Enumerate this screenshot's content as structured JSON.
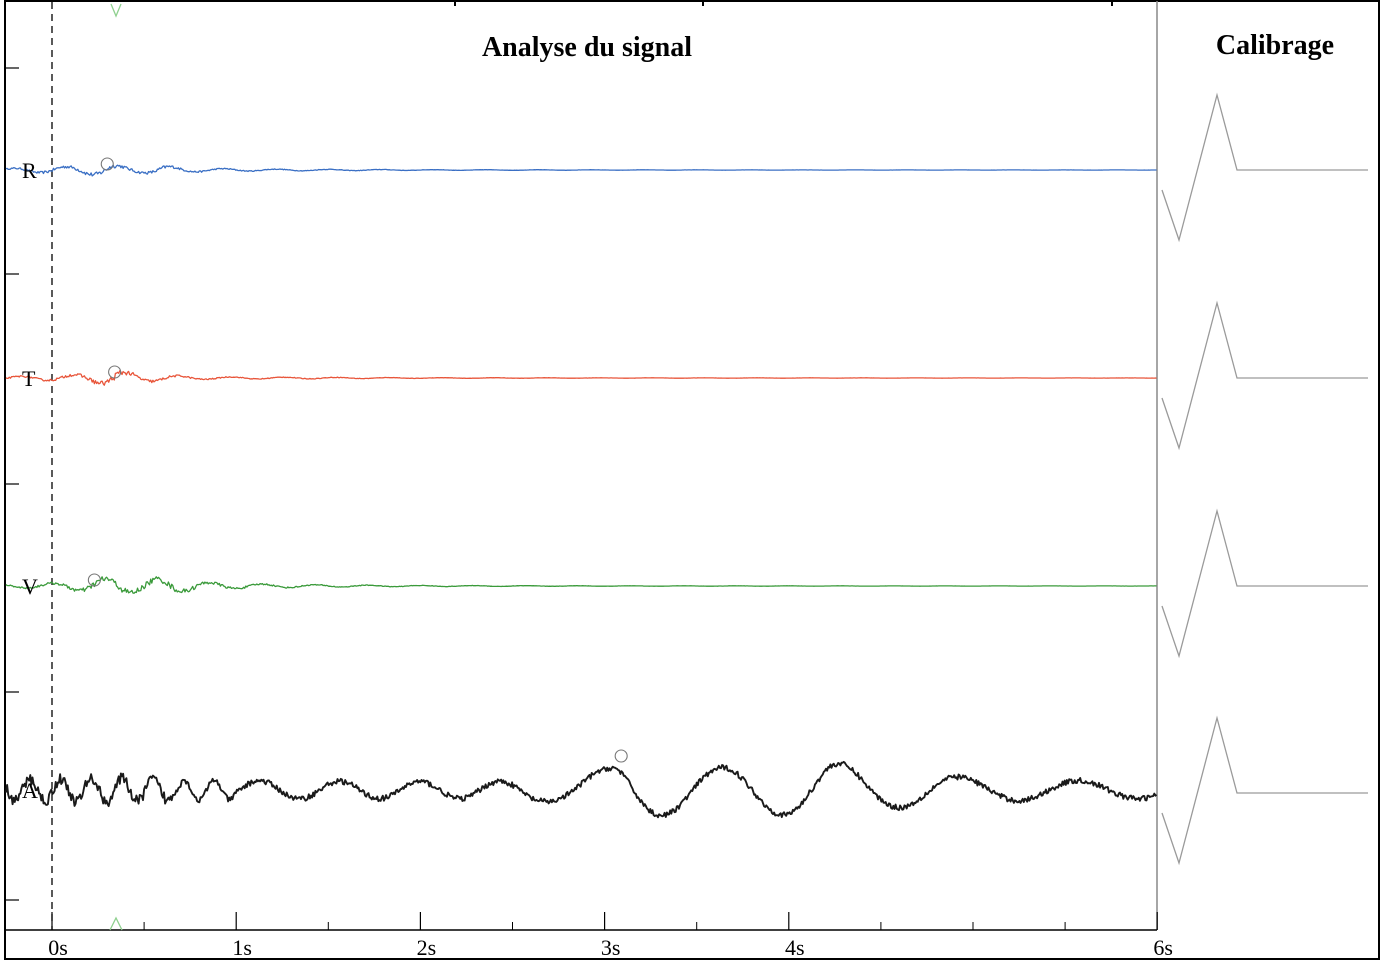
{
  "titles": {
    "main": "Analyse du signal",
    "calibration": "Calibrage"
  },
  "colors": {
    "R": "#3a6fc4",
    "T": "#e8553a",
    "V": "#3a9a3a",
    "A": "#1a1a1a",
    "calibration": "#9a9a9a",
    "frame": "#000000",
    "divider": "#888888",
    "marker_circle": "#777777",
    "trigger_marker": "#8fd08f"
  },
  "chart_data": {
    "type": "line",
    "title": "Analyse du signal",
    "xlabel": "",
    "ylabel": "",
    "x_unit": "s",
    "xlim": [
      -0.25,
      6
    ],
    "grid": false,
    "x_ticks": [
      {
        "value": 0,
        "label": "0s"
      },
      {
        "value": 1,
        "label": "1s"
      },
      {
        "value": 2,
        "label": "2s"
      },
      {
        "value": 3,
        "label": "3s"
      },
      {
        "value": 4,
        "label": "4s"
      },
      {
        "value": 6,
        "label": "6s"
      }
    ],
    "x_minor_ticks": [
      0.5,
      1.5,
      2.5,
      3.5,
      4.5,
      5,
      5.5
    ],
    "trigger_line_x": 0,
    "series": [
      {
        "name": "R",
        "color": "#3a6fc4",
        "x": [
          -0.25,
          0.0,
          0.1,
          0.2,
          0.3,
          0.4,
          0.5,
          0.6,
          0.7,
          0.8,
          1.0,
          1.2,
          1.5,
          2.0,
          3.0,
          4.0,
          5.0,
          6.0
        ],
        "amplitude": [
          0.4,
          0.9,
          1.0,
          1.3,
          1.6,
          1.0,
          0.8,
          1.2,
          0.7,
          0.5,
          0.35,
          0.25,
          0.2,
          0.1,
          0.05,
          0.03,
          0.03,
          0.02
        ],
        "pick_time": 0.3
      },
      {
        "name": "T",
        "color": "#e8553a",
        "x": [
          -0.25,
          0.0,
          0.1,
          0.2,
          0.3,
          0.35,
          0.4,
          0.5,
          0.6,
          0.8,
          1.0,
          1.5,
          2.0,
          3.0,
          4.0,
          5.0,
          6.0
        ],
        "amplitude": [
          0.4,
          0.7,
          0.9,
          1.2,
          1.8,
          2.2,
          1.6,
          1.1,
          0.8,
          0.4,
          0.3,
          0.2,
          0.1,
          0.05,
          0.04,
          0.03,
          0.02
        ],
        "pick_time": 0.34
      },
      {
        "name": "V",
        "color": "#3a9a3a",
        "x": [
          -0.25,
          0.0,
          0.1,
          0.2,
          0.3,
          0.4,
          0.5,
          0.6,
          0.7,
          0.8,
          0.9,
          1.0,
          1.2,
          1.5,
          2.0,
          3.0,
          4.0,
          5.0,
          6.0
        ],
        "amplitude": [
          0.4,
          0.8,
          1.1,
          1.6,
          2.2,
          2.0,
          1.8,
          2.1,
          1.6,
          1.2,
          0.9,
          0.7,
          0.5,
          0.3,
          0.15,
          0.06,
          0.04,
          0.03,
          0.02
        ],
        "pick_time": 0.23
      },
      {
        "name": "A",
        "color": "#1a1a1a",
        "x": [
          -0.25,
          0.0,
          0.3,
          0.7,
          1.0,
          1.4,
          2.0,
          2.5,
          2.8,
          3.0,
          3.1,
          3.3,
          3.6,
          3.9,
          4.2,
          4.5,
          4.8,
          5.0,
          5.5,
          6.0
        ],
        "amplitude": [
          3.0,
          3.2,
          3.5,
          3.0,
          2.8,
          2.6,
          2.5,
          2.6,
          4.0,
          6.0,
          9.0,
          7.5,
          6.5,
          7.0,
          8.5,
          5.5,
          4.5,
          3.5,
          2.8,
          2.5
        ],
        "pick_time": 3.09
      }
    ],
    "calibration_pulse": {
      "channels": [
        "R",
        "T",
        "V",
        "A"
      ],
      "shape": "down-up-return",
      "min": -1,
      "max": 1
    }
  }
}
